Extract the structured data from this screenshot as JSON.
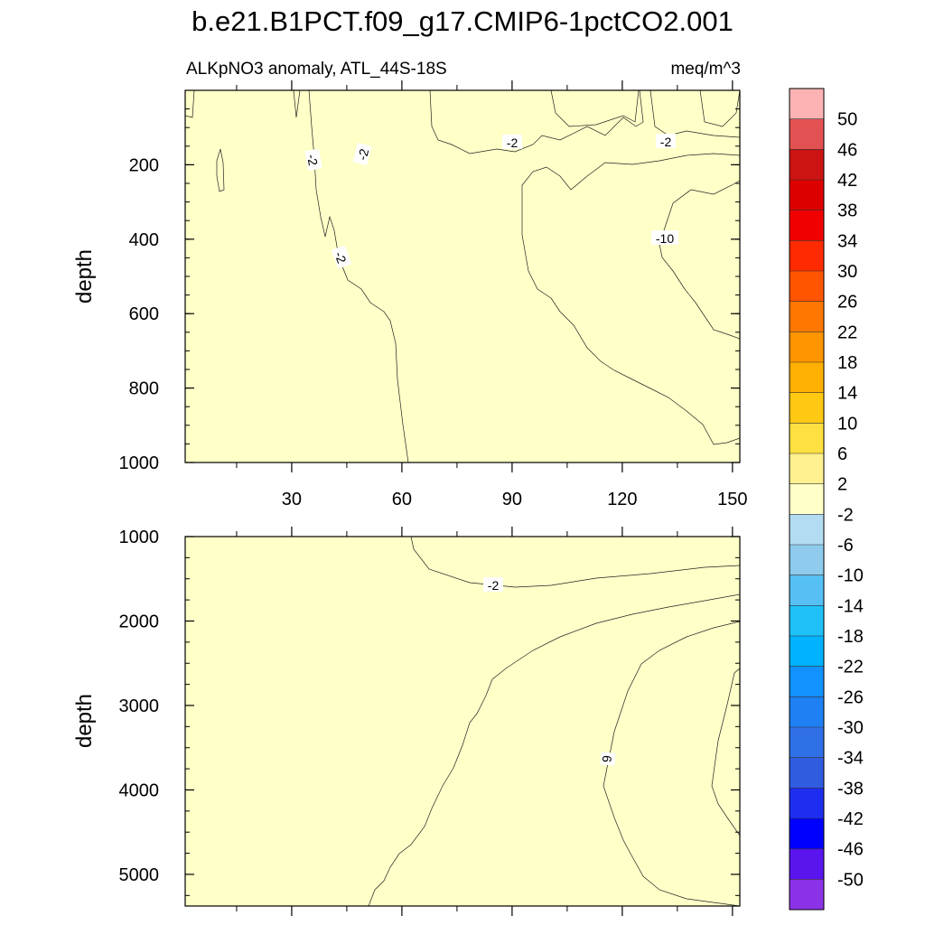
{
  "title": "b.e21.B1PCT.f09_g17.CMIP6-1pctCO2.001",
  "subtitle_left": "ALKpNO3 anomaly, ATL_44S-18S",
  "subtitle_right": "meq/m^3",
  "chart_data": {
    "type": "contour",
    "x_ticks": [
      "30",
      "60",
      "90",
      "120",
      "150"
    ],
    "xlim": [
      1,
      152
    ],
    "colorbar_labels": [
      "50",
      "46",
      "42",
      "38",
      "34",
      "30",
      "26",
      "22",
      "18",
      "14",
      "10",
      "6",
      "2",
      "-2",
      "-6",
      "-10",
      "-14",
      "-18",
      "-22",
      "-26",
      "-30",
      "-34",
      "-38",
      "-42",
      "-46",
      "-50"
    ],
    "colorbar_colors": [
      "#fdb3b3",
      "#e35252",
      "#cc1414",
      "#dd0000",
      "#f00000",
      "#ff2a00",
      "#ff5500",
      "#ff7700",
      "#ff9500",
      "#ffb000",
      "#ffc812",
      "#ffe042",
      "#fff190",
      "#ffffc8",
      "#b3dcf2",
      "#8ecbec",
      "#56c0f5",
      "#1ec0f7",
      "#00b2ff",
      "#1292ff",
      "#1e80f2",
      "#3070e6",
      "#305ce0",
      "#1e2ef0",
      "#0000ff",
      "#5a14ee",
      "#8c32e6"
    ],
    "panels": [
      {
        "ylabel": "depth",
        "ylim": [
          0,
          1000
        ],
        "y_ticks": [
          "200",
          "400",
          "600",
          "800",
          "1000"
        ],
        "contour_labels": [
          "-2",
          "-2",
          "-2",
          "-2",
          "-2",
          "-10"
        ]
      },
      {
        "ylabel": "depth",
        "ylim": [
          1000,
          5375
        ],
        "y_ticks": [
          "1000",
          "2000",
          "3000",
          "4000",
          "5000"
        ],
        "contour_labels": [
          "-2",
          "6"
        ]
      }
    ]
  }
}
